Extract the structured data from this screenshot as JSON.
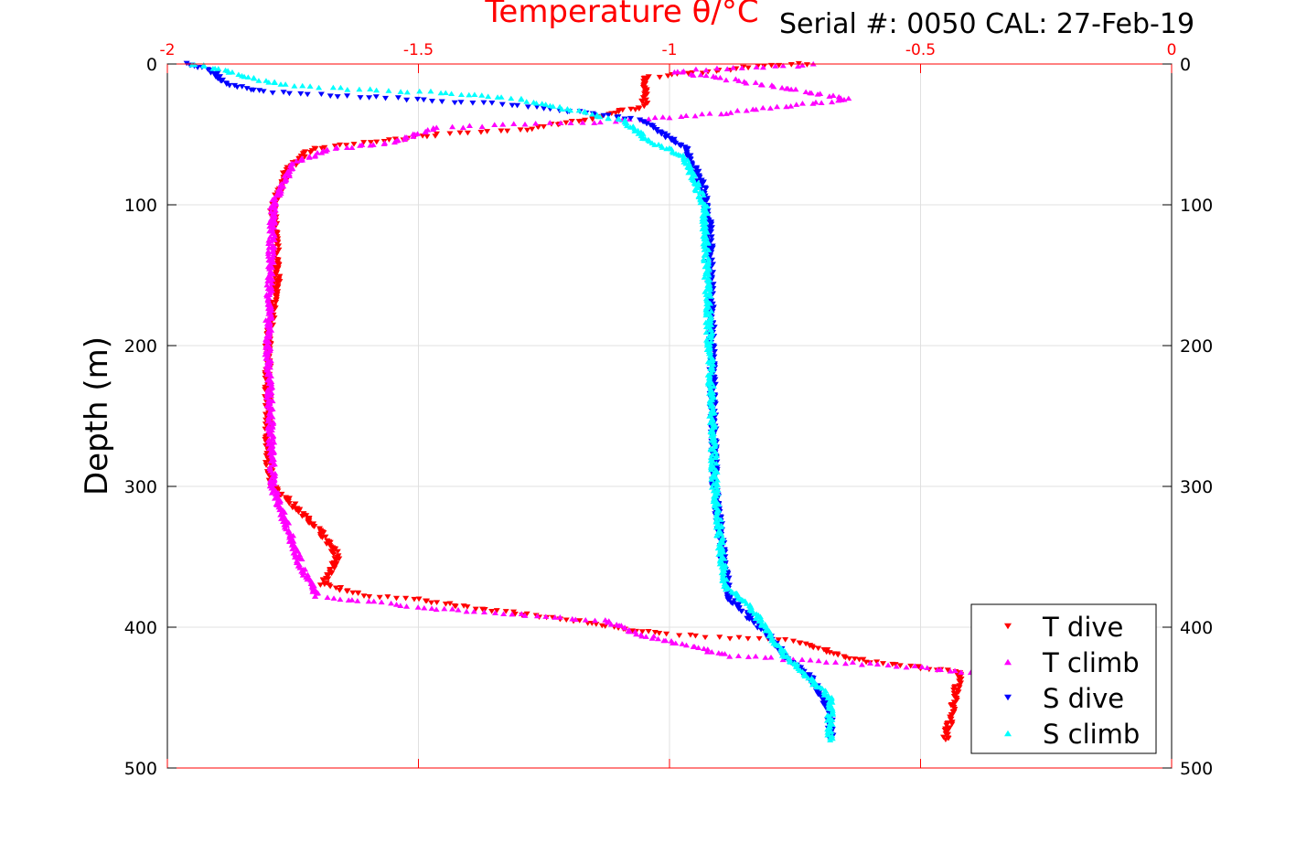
{
  "chart_data": {
    "type": "scatter",
    "title": "Temperature θ/°C",
    "subtitle": "Serial #: 0050  CAL: 27-Feb-19",
    "xlabel": "Temperature θ/°C",
    "ylabel": "Depth (m)",
    "xlim": [
      -2,
      0
    ],
    "ylim": [
      0,
      500
    ],
    "y_reversed": true,
    "grid": true,
    "legend_position": "bottom-right",
    "x_ticks": [
      "-2",
      "-1.5",
      "-1",
      "-0.5",
      "0"
    ],
    "y_ticks": [
      "0",
      "100",
      "200",
      "300",
      "400",
      "500"
    ],
    "series": [
      {
        "name": "T dive",
        "color": "#ff0000",
        "marker": "triangle-down",
        "points": [
          [
            -0.72,
            0
          ],
          [
            -0.8,
            1
          ],
          [
            -1.05,
            10
          ],
          [
            -1.05,
            30
          ],
          [
            -1.17,
            40
          ],
          [
            -1.3,
            47
          ],
          [
            -1.46,
            50
          ],
          [
            -1.57,
            55
          ],
          [
            -1.71,
            60
          ],
          [
            -1.76,
            75
          ],
          [
            -1.79,
            100
          ],
          [
            -1.78,
            150
          ],
          [
            -1.8,
            200
          ],
          [
            -1.8,
            280
          ],
          [
            -1.79,
            300
          ],
          [
            -1.7,
            330
          ],
          [
            -1.66,
            350
          ],
          [
            -1.69,
            370
          ],
          [
            -1.6,
            378
          ],
          [
            -1.51,
            380
          ],
          [
            -1.42,
            385
          ],
          [
            -1.2,
            395
          ],
          [
            -1.02,
            405
          ],
          [
            -0.75,
            410
          ],
          [
            -0.66,
            420
          ],
          [
            -0.6,
            425
          ],
          [
            -0.42,
            432
          ],
          [
            -0.45,
            480
          ]
        ]
      },
      {
        "name": "T climb",
        "color": "#ff00ff",
        "marker": "triangle-up",
        "points": [
          [
            -0.71,
            0
          ],
          [
            -0.99,
            5
          ],
          [
            -0.8,
            15
          ],
          [
            -0.64,
            25
          ],
          [
            -0.9,
            35
          ],
          [
            -1.09,
            40
          ],
          [
            -1.46,
            45
          ],
          [
            -1.55,
            55
          ],
          [
            -1.67,
            60
          ],
          [
            -1.75,
            70
          ],
          [
            -1.79,
            100
          ],
          [
            -1.8,
            200
          ],
          [
            -1.79,
            300
          ],
          [
            -1.76,
            330
          ],
          [
            -1.73,
            360
          ],
          [
            -1.7,
            378
          ],
          [
            -1.42,
            388
          ],
          [
            -1.13,
            395
          ],
          [
            -1.06,
            405
          ],
          [
            -0.88,
            420
          ],
          [
            -0.51,
            428
          ],
          [
            -0.4,
            432
          ]
        ]
      },
      {
        "name": "S dive",
        "color": "#0000ff",
        "marker": "triangle-down",
        "points": [
          [
            -1.96,
            0
          ],
          [
            -1.91,
            5
          ],
          [
            -1.88,
            15
          ],
          [
            -1.81,
            20
          ],
          [
            -1.64,
            23
          ],
          [
            -1.28,
            30
          ],
          [
            -1.17,
            35
          ],
          [
            -1.06,
            40
          ],
          [
            -0.99,
            55
          ],
          [
            -0.97,
            60
          ],
          [
            -0.93,
            90
          ],
          [
            -0.92,
            120
          ],
          [
            -0.91,
            300
          ],
          [
            -0.89,
            360
          ],
          [
            -0.88,
            380
          ],
          [
            -0.82,
            400
          ],
          [
            -0.77,
            420
          ],
          [
            -0.71,
            440
          ],
          [
            -0.68,
            460
          ],
          [
            -0.68,
            480
          ]
        ]
      },
      {
        "name": "S climb",
        "color": "#00ffff",
        "marker": "triangle-up",
        "points": [
          [
            -1.95,
            0
          ],
          [
            -1.88,
            5
          ],
          [
            -1.77,
            15
          ],
          [
            -1.6,
            18
          ],
          [
            -1.46,
            20
          ],
          [
            -1.3,
            25
          ],
          [
            -1.2,
            32
          ],
          [
            -1.09,
            40
          ],
          [
            -1.04,
            55
          ],
          [
            -0.97,
            65
          ],
          [
            -0.93,
            100
          ],
          [
            -0.91,
            300
          ],
          [
            -0.89,
            370
          ],
          [
            -0.84,
            385
          ],
          [
            -0.77,
            420
          ],
          [
            -0.68,
            450
          ],
          [
            -0.68,
            480
          ]
        ]
      }
    ]
  }
}
